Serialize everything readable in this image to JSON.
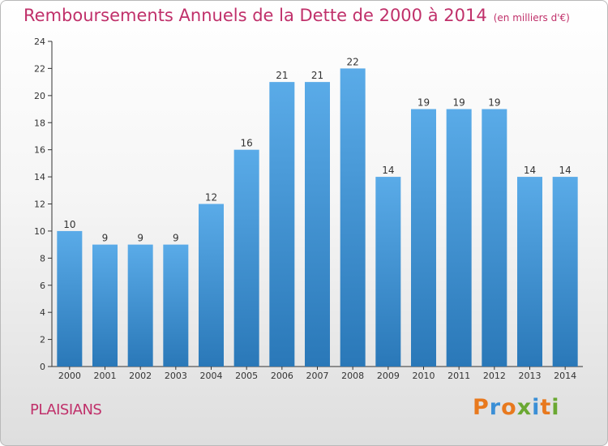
{
  "header": {
    "title": "Remboursements Annuels de la Dette de 2000 à 2014",
    "unit": "(en milliers d'€)"
  },
  "footer": {
    "commune": "PLAISIANS",
    "logo_text": "Proxiti"
  },
  "colors": {
    "title": "#c0306a",
    "bar_top": "#5aabe8",
    "bar_bottom": "#2a78b8",
    "logo_letters": [
      "#e8791e",
      "#3b8fd6",
      "#e8791e",
      "#6aa832",
      "#3b8fd6",
      "#e8791e",
      "#6aa832"
    ]
  },
  "chart_data": {
    "type": "bar",
    "title": "Remboursements Annuels de la Dette de 2000 à 2014",
    "xlabel": "",
    "ylabel": "",
    "categories": [
      "2000",
      "2001",
      "2002",
      "2003",
      "2004",
      "2005",
      "2006",
      "2007",
      "2008",
      "2009",
      "2010",
      "2011",
      "2012",
      "2013",
      "2014"
    ],
    "values": [
      10,
      9,
      9,
      9,
      12,
      16,
      21,
      21,
      22,
      14,
      19,
      19,
      19,
      14,
      14
    ],
    "ylim": [
      0,
      24
    ],
    "yticks": [
      0,
      2,
      4,
      6,
      8,
      10,
      12,
      14,
      16,
      18,
      20,
      22,
      24
    ],
    "grid": false,
    "data_labels": true
  }
}
